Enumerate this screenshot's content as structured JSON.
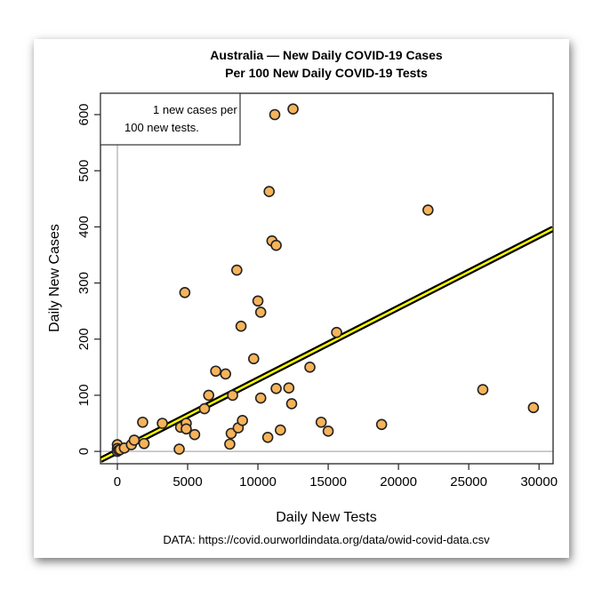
{
  "chart_data": {
    "type": "scatter",
    "title": [
      "Australia — New Daily COVID-19 Cases",
      "Per 100 New Daily COVID-19 Tests"
    ],
    "xlabel": "Daily New Tests",
    "ylabel": "Daily New Cases",
    "caption": "DATA: https://covid.ourworldindata.org/data/owid-covid-data.csv",
    "legend": {
      "text": [
        "1 new cases per",
        "100 new tests."
      ],
      "placement": "top-left"
    },
    "xlim": [
      -1200,
      31000
    ],
    "ylim": [
      -22,
      638
    ],
    "xticks": [
      0,
      5000,
      10000,
      15000,
      20000,
      25000,
      30000
    ],
    "yticks": [
      0,
      100,
      200,
      300,
      400,
      500,
      600
    ],
    "reference_lines": {
      "x": 0,
      "y": 0
    },
    "fit_line": {
      "slope": 0.0128,
      "intercept": 0
    },
    "point_color": "#f7b35a",
    "line_color": "#ffff00",
    "points": [
      [
        0,
        12
      ],
      [
        0,
        5
      ],
      [
        0,
        0
      ],
      [
        100,
        2
      ],
      [
        200,
        3
      ],
      [
        500,
        6
      ],
      [
        1000,
        12
      ],
      [
        1200,
        20
      ],
      [
        1800,
        52
      ],
      [
        1900,
        14
      ],
      [
        3200,
        50
      ],
      [
        4500,
        43
      ],
      [
        4400,
        4
      ],
      [
        4800,
        283
      ],
      [
        4900,
        50
      ],
      [
        4900,
        40
      ],
      [
        5500,
        30
      ],
      [
        6200,
        76
      ],
      [
        6500,
        100
      ],
      [
        7000,
        143
      ],
      [
        7700,
        138
      ],
      [
        8000,
        13
      ],
      [
        8100,
        32
      ],
      [
        8200,
        100
      ],
      [
        8500,
        323
      ],
      [
        8600,
        42
      ],
      [
        8800,
        223
      ],
      [
        8900,
        55
      ],
      [
        9700,
        165
      ],
      [
        10000,
        268
      ],
      [
        10200,
        248
      ],
      [
        10200,
        95
      ],
      [
        10700,
        25
      ],
      [
        10800,
        463
      ],
      [
        11000,
        375
      ],
      [
        11200,
        600
      ],
      [
        11300,
        367
      ],
      [
        11300,
        112
      ],
      [
        11600,
        38
      ],
      [
        12200,
        113
      ],
      [
        12400,
        85
      ],
      [
        12500,
        610
      ],
      [
        13700,
        150
      ],
      [
        14500,
        52
      ],
      [
        15000,
        36
      ],
      [
        15600,
        212
      ],
      [
        18800,
        48
      ],
      [
        22100,
        430
      ],
      [
        26000,
        110
      ],
      [
        29600,
        78
      ]
    ]
  }
}
